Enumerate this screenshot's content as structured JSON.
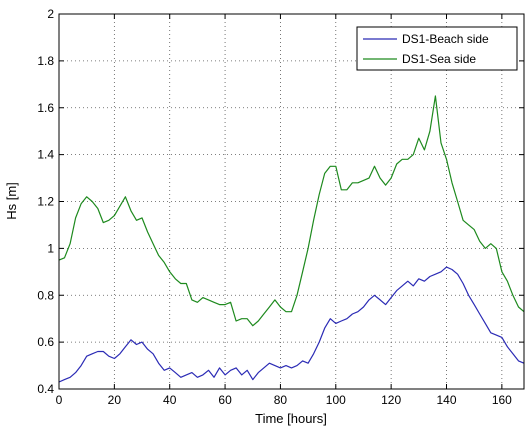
{
  "chart_data": {
    "type": "line",
    "title": "",
    "xlabel": "Time [hours]",
    "ylabel": "Hs [m]",
    "xlim": [
      0,
      168
    ],
    "ylim": [
      0.4,
      2
    ],
    "xticks": [
      0,
      20,
      40,
      60,
      80,
      100,
      120,
      140,
      160
    ],
    "yticks": [
      0.4,
      0.6,
      0.8,
      1,
      1.2,
      1.4,
      1.6,
      1.8,
      2
    ],
    "xtick_labels": [
      "0",
      "20",
      "40",
      "60",
      "80",
      "100",
      "120",
      "140",
      "160"
    ],
    "ytick_labels": [
      "0.4",
      "0.6",
      "0.8",
      "1",
      "1.2",
      "1.4",
      "1.6",
      "1.8",
      "2"
    ],
    "grid": true,
    "legend_position": "top-right",
    "series": [
      {
        "name": "DS1-Beach side",
        "color": "#2b2bb5",
        "x": [
          0,
          2,
          4,
          6,
          8,
          10,
          12,
          14,
          16,
          18,
          20,
          22,
          24,
          26,
          28,
          30,
          32,
          34,
          36,
          38,
          40,
          42,
          44,
          46,
          48,
          50,
          52,
          54,
          56,
          58,
          60,
          62,
          64,
          66,
          68,
          70,
          72,
          74,
          76,
          78,
          80,
          82,
          84,
          86,
          88,
          90,
          92,
          94,
          96,
          98,
          100,
          102,
          104,
          106,
          108,
          110,
          112,
          114,
          116,
          118,
          120,
          122,
          124,
          126,
          128,
          130,
          132,
          134,
          136,
          138,
          140,
          142,
          144,
          146,
          148,
          150,
          152,
          154,
          156,
          158,
          160,
          162,
          164,
          166,
          168
        ],
        "y": [
          0.43,
          0.44,
          0.45,
          0.47,
          0.5,
          0.54,
          0.55,
          0.56,
          0.56,
          0.54,
          0.53,
          0.55,
          0.58,
          0.61,
          0.59,
          0.6,
          0.57,
          0.55,
          0.51,
          0.48,
          0.49,
          0.47,
          0.45,
          0.46,
          0.47,
          0.45,
          0.46,
          0.48,
          0.45,
          0.49,
          0.46,
          0.48,
          0.49,
          0.46,
          0.48,
          0.44,
          0.47,
          0.49,
          0.51,
          0.5,
          0.49,
          0.5,
          0.49,
          0.5,
          0.52,
          0.51,
          0.55,
          0.6,
          0.66,
          0.7,
          0.68,
          0.69,
          0.7,
          0.72,
          0.73,
          0.75,
          0.78,
          0.8,
          0.78,
          0.76,
          0.79,
          0.82,
          0.84,
          0.86,
          0.84,
          0.87,
          0.86,
          0.88,
          0.89,
          0.9,
          0.92,
          0.91,
          0.89,
          0.85,
          0.8,
          0.76,
          0.72,
          0.68,
          0.64,
          0.63,
          0.62,
          0.58,
          0.55,
          0.52,
          0.51
        ]
      },
      {
        "name": "DS1-Sea side",
        "color": "#1e8a1e",
        "x": [
          0,
          2,
          4,
          6,
          8,
          10,
          12,
          14,
          16,
          18,
          20,
          22,
          24,
          26,
          28,
          30,
          32,
          34,
          36,
          38,
          40,
          42,
          44,
          46,
          48,
          50,
          52,
          54,
          56,
          58,
          60,
          62,
          64,
          66,
          68,
          70,
          72,
          74,
          76,
          78,
          80,
          82,
          84,
          86,
          88,
          90,
          92,
          94,
          96,
          98,
          100,
          102,
          104,
          106,
          108,
          110,
          112,
          114,
          116,
          118,
          120,
          122,
          124,
          126,
          128,
          130,
          132,
          134,
          136,
          138,
          140,
          142,
          144,
          146,
          148,
          150,
          152,
          154,
          156,
          158,
          160,
          162,
          164,
          166,
          168
        ],
        "y": [
          0.95,
          0.96,
          1.02,
          1.13,
          1.19,
          1.22,
          1.2,
          1.17,
          1.11,
          1.12,
          1.14,
          1.18,
          1.22,
          1.16,
          1.12,
          1.13,
          1.07,
          1.02,
          0.97,
          0.94,
          0.9,
          0.87,
          0.85,
          0.85,
          0.78,
          0.77,
          0.79,
          0.78,
          0.77,
          0.76,
          0.76,
          0.77,
          0.69,
          0.7,
          0.7,
          0.67,
          0.69,
          0.72,
          0.75,
          0.78,
          0.75,
          0.73,
          0.73,
          0.8,
          0.9,
          1.0,
          1.12,
          1.23,
          1.32,
          1.35,
          1.35,
          1.25,
          1.25,
          1.28,
          1.28,
          1.29,
          1.3,
          1.35,
          1.3,
          1.27,
          1.3,
          1.36,
          1.38,
          1.38,
          1.4,
          1.47,
          1.42,
          1.5,
          1.65,
          1.45,
          1.38,
          1.28,
          1.2,
          1.12,
          1.1,
          1.08,
          1.03,
          1.0,
          1.02,
          1.0,
          0.9,
          0.86,
          0.8,
          0.75,
          0.73
        ]
      }
    ]
  }
}
